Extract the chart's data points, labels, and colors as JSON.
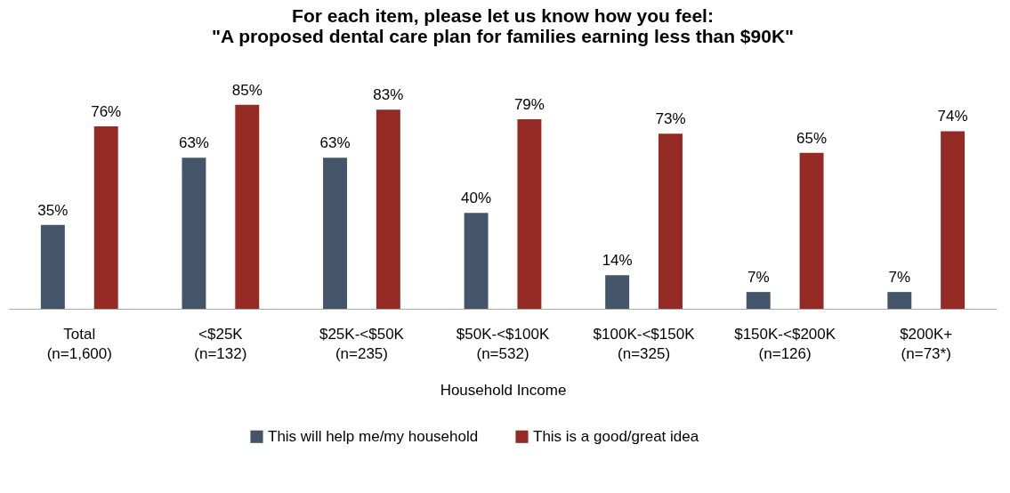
{
  "chart_data": {
    "type": "bar",
    "title": [
      "For each item, please let us know how you feel:",
      "\"A proposed dental care plan for families earning less than $90K\""
    ],
    "xlabel": "Household Income",
    "categories": [
      "Total\n(n=1,600)",
      "<$25K\n(n=132)",
      "$25K-<$50K\n(n=235)",
      "$50K-<$100K\n(n=532)",
      "$100K-<$150K\n(n=325)",
      "$150K-<$200K\n(n=126)",
      "$200K+\n(n=73*)"
    ],
    "series": [
      {
        "name": "This will help me/my household",
        "color": "#44546a",
        "values": [
          35,
          63,
          63,
          40,
          14,
          7,
          7
        ],
        "value_labels": [
          "35%",
          "63%",
          "63%",
          "40%",
          "14%",
          "7%",
          "7%"
        ]
      },
      {
        "name": "This is a good/great idea",
        "color": "#952923",
        "values": [
          76,
          85,
          83,
          79,
          73,
          65,
          74
        ],
        "value_labels": [
          "76%",
          "85%",
          "83%",
          "79%",
          "73%",
          "65%",
          "74%"
        ]
      }
    ],
    "legend": "bottom",
    "grid": false
  }
}
